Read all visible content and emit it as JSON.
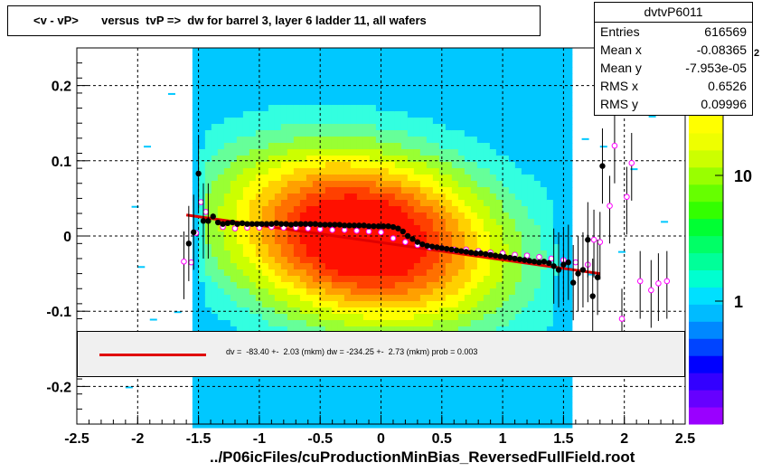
{
  "header": {
    "title": "<v - vP>       versus  tvP =>  dw for barrel 3, layer 6 ladder 11, all wafers"
  },
  "stats": {
    "name": "dvtvP6011",
    "rows": [
      {
        "label": "Entries",
        "value": "616569"
      },
      {
        "label": "Mean x",
        "value": "-0.08365"
      },
      {
        "label": "Mean y",
        "value": "-7.953e-05"
      },
      {
        "label": "RMS x",
        "value": "0.6526"
      },
      {
        "label": "RMS y",
        "value": "0.09996"
      }
    ]
  },
  "fit": {
    "text": "dv =  -83.40 +-  2.03 (mkm) dw = -234.25 +-  2.73 (mkm) prob = 0.003",
    "line_color": "#e00000"
  },
  "footer": {
    "path": "../P06icFiles/cuProductionMinBias_ReversedFullField.root"
  },
  "palette": {
    "labels": [
      "10",
      "1"
    ],
    "partial_label": "2"
  },
  "chart_data": {
    "type": "heatmap",
    "xlim": [
      -2.5,
      2.5
    ],
    "ylim": [
      -0.25,
      0.25
    ],
    "x_ticks": [
      "-2.5",
      "-2",
      "-1.5",
      "-1",
      "-0.5",
      "0",
      "0.5",
      "1",
      "1.5",
      "2",
      "2.5"
    ],
    "y_ticks": [
      "0.2",
      "0.1",
      "0",
      "-0.1",
      "-0.2"
    ],
    "grid": true,
    "fit_line": {
      "x": [
        -1.6,
        1.8
      ],
      "y": [
        0.028,
        -0.05
      ]
    },
    "profile_black": {
      "x": [
        -1.58,
        -1.54,
        -1.5,
        -1.46,
        -1.42,
        -1.38,
        -1.34,
        -1.3,
        -1.26,
        -1.22,
        -1.18,
        -1.14,
        -1.1,
        -1.06,
        -1.02,
        -0.98,
        -0.94,
        -0.9,
        -0.86,
        -0.82,
        -0.78,
        -0.74,
        -0.7,
        -0.66,
        -0.62,
        -0.58,
        -0.54,
        -0.5,
        -0.46,
        -0.42,
        -0.38,
        -0.34,
        -0.3,
        -0.26,
        -0.22,
        -0.18,
        -0.14,
        -0.1,
        -0.06,
        -0.02,
        0.02,
        0.06,
        0.1,
        0.14,
        0.18,
        0.22,
        0.26,
        0.3,
        0.34,
        0.38,
        0.42,
        0.46,
        0.5,
        0.54,
        0.58,
        0.62,
        0.66,
        0.7,
        0.74,
        0.78,
        0.82,
        0.86,
        0.9,
        0.94,
        0.98,
        1.02,
        1.06,
        1.1,
        1.14,
        1.18,
        1.22,
        1.26,
        1.3,
        1.34,
        1.38,
        1.42,
        1.46,
        1.5,
        1.54,
        1.58,
        1.62,
        1.66,
        1.7,
        1.74,
        1.78,
        1.82
      ],
      "y": [
        -0.01,
        0.005,
        0.083,
        0.02,
        0.02,
        0.026,
        0.018,
        0.016,
        0.017,
        0.018,
        0.016,
        0.017,
        0.016,
        0.016,
        0.016,
        0.016,
        0.016,
        0.016,
        0.017,
        0.016,
        0.016,
        0.015,
        0.016,
        0.016,
        0.016,
        0.016,
        0.016,
        0.015,
        0.015,
        0.015,
        0.015,
        0.015,
        0.014,
        0.014,
        0.014,
        0.014,
        0.014,
        0.013,
        0.013,
        0.013,
        0.013,
        0.013,
        0.012,
        0.01,
        0.006,
        0.0,
        -0.004,
        -0.008,
        -0.011,
        -0.013,
        -0.014,
        -0.015,
        -0.016,
        -0.017,
        -0.018,
        -0.019,
        -0.02,
        -0.021,
        -0.022,
        -0.023,
        -0.023,
        -0.024,
        -0.025,
        -0.026,
        -0.027,
        -0.028,
        -0.029,
        -0.03,
        -0.031,
        -0.032,
        -0.033,
        -0.034,
        -0.035,
        -0.034,
        -0.036,
        -0.04,
        -0.045,
        -0.038,
        -0.035,
        -0.062,
        -0.05,
        -0.045,
        -0.005,
        -0.08,
        -0.055,
        0.093
      ]
    },
    "profile_magenta": {
      "x": [
        -1.62,
        -1.56,
        -1.52,
        -1.48,
        -1.44,
        -1.3,
        -1.2,
        -1.1,
        -1.0,
        -0.9,
        -0.8,
        -0.7,
        -0.6,
        -0.5,
        -0.4,
        -0.3,
        -0.2,
        -0.1,
        0.0,
        0.1,
        0.2,
        0.3,
        0.4,
        0.5,
        0.6,
        0.7,
        0.8,
        0.9,
        1.0,
        1.1,
        1.2,
        1.3,
        1.4,
        1.5,
        1.6,
        1.7,
        1.75,
        1.8,
        1.88,
        1.92,
        1.98,
        2.02,
        2.06,
        2.13,
        2.22,
        2.28,
        2.35
      ],
      "y": [
        -0.034,
        -0.035,
        0.004,
        0.045,
        0.032,
        0.012,
        0.01,
        0.011,
        0.011,
        0.012,
        0.011,
        0.011,
        0.01,
        0.009,
        0.008,
        0.008,
        0.007,
        0.006,
        0.005,
        -0.003,
        -0.008,
        -0.012,
        -0.015,
        -0.016,
        -0.018,
        -0.018,
        -0.02,
        -0.022,
        -0.023,
        -0.025,
        -0.026,
        -0.028,
        -0.03,
        -0.032,
        -0.035,
        -0.038,
        -0.005,
        -0.008,
        0.04,
        0.12,
        -0.11,
        0.052,
        0.097,
        -0.06,
        -0.072,
        -0.063,
        -0.06
      ]
    }
  }
}
